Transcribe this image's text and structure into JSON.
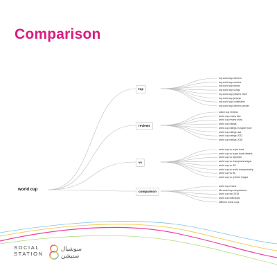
{
  "title": "Comparison",
  "title_color": "#d81b7e",
  "root": {
    "label": "world cup"
  },
  "branches": [
    {
      "label": "top",
      "leaves": [
        "top world cup winners",
        "top world cup scorers",
        "top world cup teams",
        "top world cup songs",
        "top world cup players 2022",
        "top world cup jerseys",
        "top world cup contenders",
        "top world cup winners cricket"
      ]
    },
    {
      "label": "reviews",
      "leaves": [
        "watch cup reviews",
        "world cup review bbc",
        "world cup review show",
        "world cup ratings",
        "world cup ratings vs super bowl",
        "world cup ratings usa",
        "world cup ratings 2022",
        "world cup ratings 2018"
      ]
    },
    {
      "label": "vs",
      "leaves": [
        "world cup vs super bowl",
        "world cup vs super bowl viewers",
        "world cup vs olympics",
        "world cup vs champions league",
        "world cup vs t20",
        "world cup vs world championship",
        "world cup vs ffa",
        "world cup vs premier league"
      ]
    },
    {
      "label": "comparison",
      "leaves": [
        "world cup review",
        "fifa world cup comparisons",
        "world cup win 2018",
        "world cup matchups",
        "different world cups"
      ]
    }
  ],
  "brand": {
    "line1": "SOCIAL",
    "line2": "STATION",
    "arabic_line1": "سوشيال",
    "arabic_line2": "ستيشن"
  },
  "colors": {
    "title": "#d81b7e",
    "line": "#bdbdbd",
    "swoosh_pink": "#e91e8c",
    "swoosh_yellow": "#f2c12e",
    "swoosh_blue": "#5fb6e5",
    "swoosh_green": "#8cc63f"
  }
}
